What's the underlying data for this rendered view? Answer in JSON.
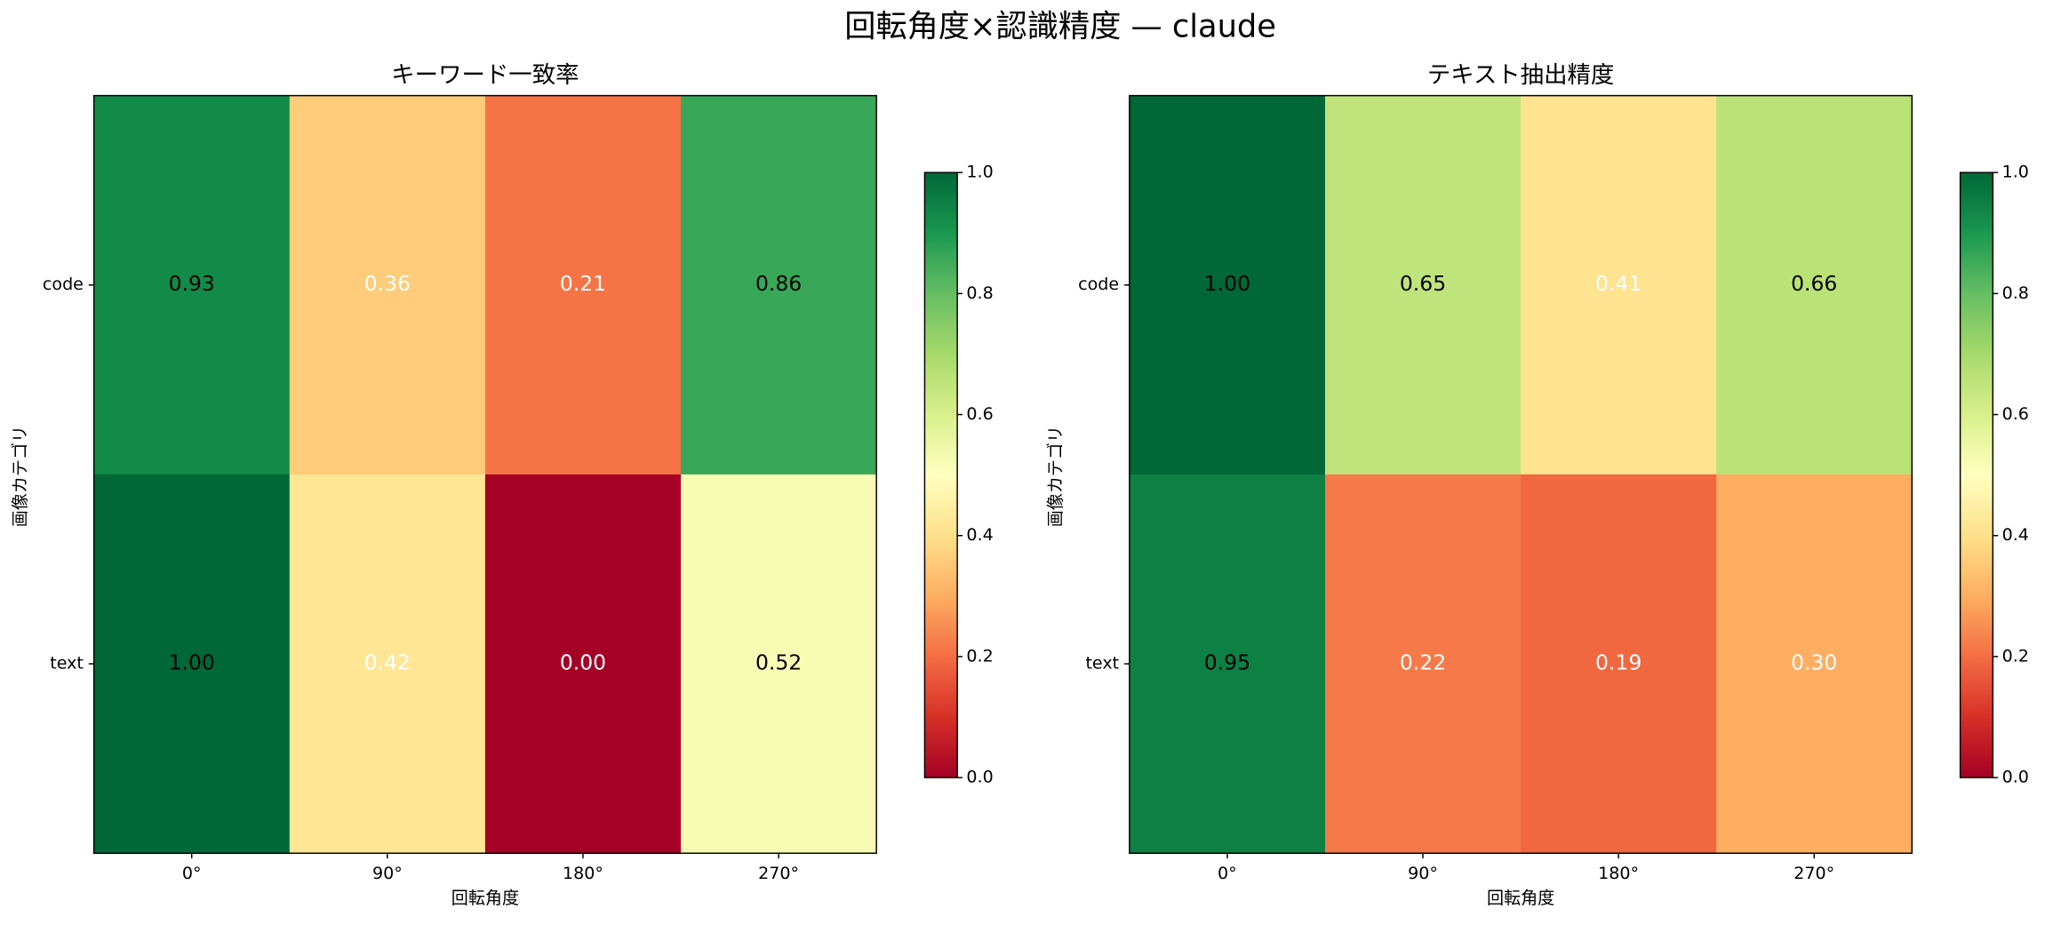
{
  "title": "回転角度×認識精度 — claude",
  "chart_data": [
    {
      "type": "heatmap",
      "title": "キーワード一致率",
      "x_label": "回転角度",
      "y_label": "画像カテゴリ",
      "categories": [
        "0°",
        "90°",
        "180°",
        "270°"
      ],
      "y_categories": [
        "code",
        "text"
      ],
      "values": [
        [
          0.93,
          0.36,
          0.21,
          0.86
        ],
        [
          1.0,
          0.42,
          0.0,
          0.52
        ]
      ],
      "value_labels": [
        [
          "0.93",
          "0.36",
          "0.21",
          "0.86"
        ],
        [
          "1.00",
          "0.42",
          "0.00",
          "0.52"
        ]
      ],
      "colormap": "RdYlGn",
      "clim": [
        0,
        1
      ],
      "cbar_ticks": [
        {
          "value": 0,
          "label": "0.0"
        },
        0.2,
        0.4,
        0.6,
        0.8,
        {
          "value": 1,
          "label": "1.0"
        }
      ]
    },
    {
      "type": "heatmap",
      "title": "テキスト抽出精度",
      "x_label": "回転角度",
      "y_label": "画像カテゴリ",
      "categories": [
        "0°",
        "90°",
        "180°",
        "270°"
      ],
      "y_categories": [
        "code",
        "text"
      ],
      "values": [
        [
          1.0,
          0.65,
          0.41,
          0.66
        ],
        [
          0.95,
          0.22,
          0.19,
          0.3
        ]
      ],
      "value_labels": [
        [
          "1.00",
          "0.65",
          "0.41",
          "0.66"
        ],
        [
          "0.95",
          "0.22",
          "0.19",
          "0.30"
        ]
      ],
      "colormap": "RdYlGn",
      "clim": [
        0,
        1
      ],
      "cbar_ticks": [
        {
          "value": 0,
          "label": "0.0"
        },
        0.2,
        0.4,
        0.6,
        0.8,
        {
          "value": 1,
          "label": "1.0"
        }
      ]
    }
  ]
}
